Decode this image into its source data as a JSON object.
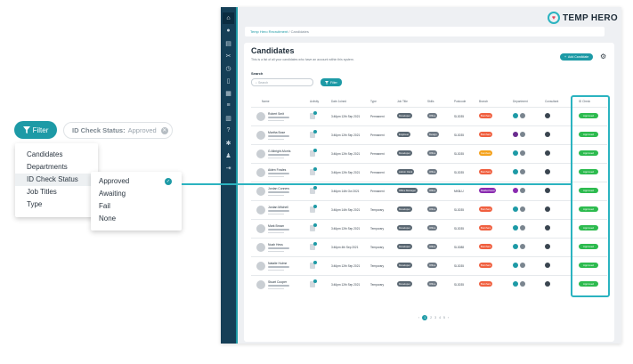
{
  "brand": {
    "name": "TEMP HERO",
    "accent": "#1d9aa6",
    "sidebar": "#153f57",
    "approved": "#2dbb4f"
  },
  "breadcrumb": {
    "parent": "Temp Hero Recruitment",
    "sep": "/",
    "current": "Candidates"
  },
  "page": {
    "title": "Candidates",
    "subtitle": "This is a list of all your candidates who have an account within this system.",
    "add_button": "Add Candidate",
    "search_label": "Search",
    "search_placeholder": "Search",
    "filter_button": "Filter"
  },
  "sidebar_icons": [
    "home-icon",
    "team-icon",
    "list-icon",
    "tools-icon",
    "clock-icon",
    "phone-icon",
    "calendar-icon",
    "menu-icon",
    "building-icon",
    "help-icon",
    "settings-icon",
    "user-icon",
    "logout-icon"
  ],
  "table": {
    "headers": [
      "Name",
      "Activity",
      "Date Joined",
      "Type",
      "Job Title",
      "Skills",
      "Postcode",
      "Branch",
      "Department",
      "Consultant",
      "ID Check"
    ],
    "rows": [
      {
        "name": "Robert Smit",
        "date": "3:46pm 12th Sep 2021",
        "type": "Permanent",
        "job": "Developer",
        "skill": "Office",
        "post": "SL3035",
        "branch": "Burnham",
        "branch_color": "#f06040",
        "dept_color": "#1d9aa6",
        "check": "Approved"
      },
      {
        "name": "Martha Bose",
        "date": "3:46pm 12th Sep 2021",
        "type": "Permanent",
        "job": "Engineer",
        "skill": "Design",
        "post": "SL3035",
        "branch": "Burnham",
        "branch_color": "#f06040",
        "dept_color": "#6a2c8f",
        "check": "Approved"
      },
      {
        "name": "G Albright-Morris",
        "date": "3:46pm 12th Sep 2021",
        "type": "Permanent",
        "job": "Developer",
        "skill": "Office",
        "post": "SL3035",
        "branch": "Farnham",
        "branch_color": "#f4a21c",
        "dept_color": "#1d9aa6",
        "check": "Approved"
      },
      {
        "name": "Aiden Fowles",
        "date": "3:46pm 12th Sep 2021",
        "type": "Permanent",
        "job": "Admin Clerk",
        "skill": "Office",
        "post": "SL3035",
        "branch": "Burnham",
        "branch_color": "#f06040",
        "dept_color": "#1d9aa6",
        "check": "Approved"
      },
      {
        "name": "Jordan Conners",
        "date": "3:46pm 14th Oct 2021",
        "type": "Permanent",
        "job": "Office Manager",
        "skill": "Office",
        "post": "MK8LU",
        "branch": "Maidenhead",
        "branch_color": "#8a2bb0",
        "dept_color": "#8a2bb0",
        "check": "Approved"
      },
      {
        "name": "Jordan Mitchell",
        "date": "3:46pm 14th Sep 2021",
        "type": "Temporary",
        "job": "Developer",
        "skill": "Office",
        "post": "SL3035",
        "branch": "Burnham",
        "branch_color": "#f06040",
        "dept_color": "#1d9aa6",
        "check": "Approved"
      },
      {
        "name": "Mark Brown",
        "date": "3:46pm 12th Sep 2021",
        "type": "Temporary",
        "job": "Developer",
        "skill": "Office",
        "post": "SL3035",
        "branch": "Burnham",
        "branch_color": "#f06040",
        "dept_color": "#1d9aa6",
        "check": "Approved"
      },
      {
        "name": "Noah Hess",
        "date": "3:46pm 4th Sep 2021",
        "type": "Temporary",
        "job": "Developer",
        "skill": "Office",
        "post": "SL3088",
        "branch": "Burnham",
        "branch_color": "#f06040",
        "dept_color": "#1d9aa6",
        "check": "Approved"
      },
      {
        "name": "Natalie Hulme",
        "date": "3:46pm 12th Sep 2021",
        "type": "Temporary",
        "job": "Developer",
        "skill": "Office",
        "post": "SL3035",
        "branch": "Burnham",
        "branch_color": "#f06040",
        "dept_color": "#1d9aa6",
        "check": "Approved"
      },
      {
        "name": "Stuart Cooper",
        "date": "3:46pm 12th Sep 2021",
        "type": "Temporary",
        "job": "Developer",
        "skill": "Office",
        "post": "SL3035",
        "branch": "Burnham",
        "branch_color": "#f06040",
        "dept_color": "#1d9aa6",
        "check": "Approved"
      }
    ]
  },
  "pager": [
    "1",
    "2",
    "3",
    "4",
    "5"
  ],
  "callout": {
    "filter_button": "Filter",
    "chip_label": "ID Check Status:",
    "chip_value": "Approved",
    "menu": [
      "Candidates",
      "Departments",
      "ID Check Status",
      "Job Titles",
      "Type"
    ],
    "submenu": [
      "Approved",
      "Awaiting",
      "Fail",
      "None"
    ]
  }
}
